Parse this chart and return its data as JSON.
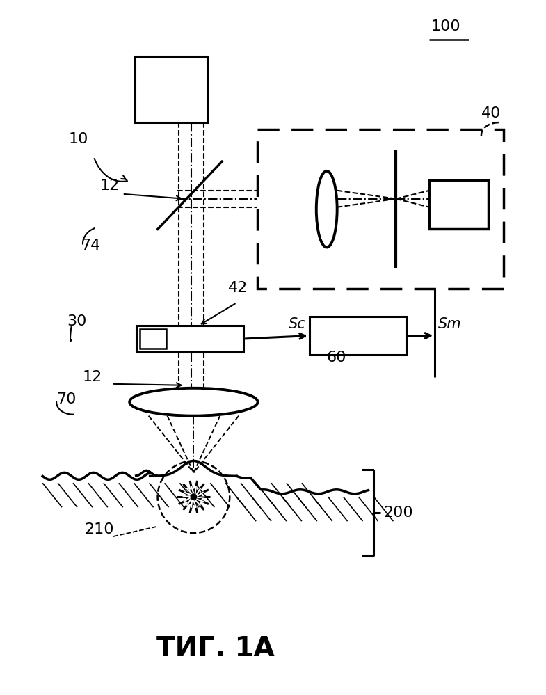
{
  "title": "ΤИГ. 1A",
  "label_100": "100",
  "label_10": "10",
  "label_12a": "12",
  "label_12b": "12",
  "label_74": "74",
  "label_30": "30",
  "label_42": "42",
  "label_40": "40",
  "label_60": "60",
  "label_70": "70",
  "label_200": "200",
  "label_210": "210",
  "label_Sc": "Sc",
  "label_Sm": "Sm",
  "bg_color": "#ffffff",
  "line_color": "#000000"
}
